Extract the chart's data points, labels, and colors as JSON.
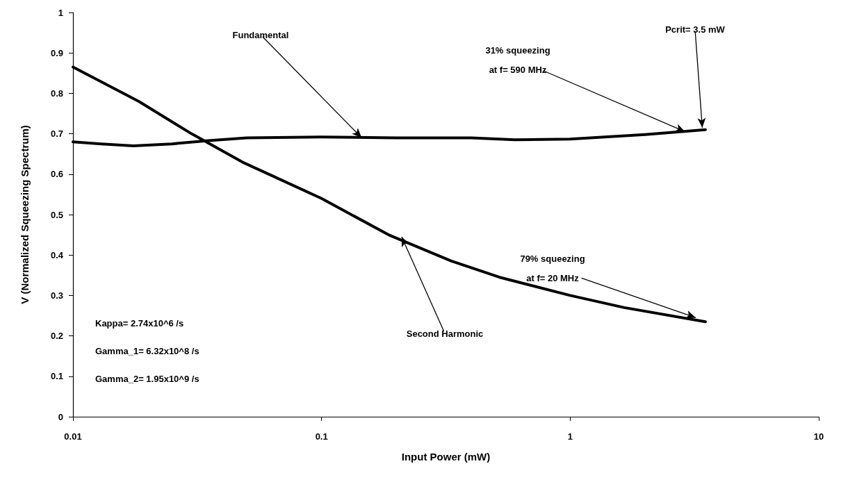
{
  "chart_data": {
    "type": "line",
    "xlabel": "Input Power (mW)",
    "ylabel": "V (Normalized Squeezing Spectrum)",
    "log": "x",
    "xlim": [
      0.01,
      10
    ],
    "xticks": [
      0.01,
      0.1,
      1,
      10
    ],
    "ylim": [
      0,
      1
    ],
    "yticks": [
      0,
      0.1,
      0.2,
      0.3,
      0.4,
      0.5,
      0.6,
      0.7,
      0.8,
      0.9,
      1
    ],
    "grid": false,
    "marker": "none",
    "line_style": "solid",
    "series": [
      {
        "color": "#000000",
        "x": [
          0.01,
          0.013,
          0.0175,
          0.025,
          0.035,
          0.05,
          0.1,
          0.2,
          0.4,
          0.6,
          1,
          2,
          3.5
        ],
        "values": [
          0.68,
          0.675,
          0.67,
          0.675,
          0.683,
          0.69,
          0.692,
          0.69,
          0.69,
          0.685,
          0.687,
          0.698,
          0.71
        ]
      },
      {
        "color": "#000000",
        "x": [
          0.01,
          0.0184,
          0.03,
          0.048,
          0.0665,
          0.1,
          0.186,
          0.333,
          0.52,
          1,
          1.65,
          3.5
        ],
        "values": [
          0.865,
          0.78,
          0.7,
          0.63,
          0.59,
          0.54,
          0.45,
          0.385,
          0.345,
          0.3,
          0.27,
          0.235
        ]
      }
    ],
    "annotations": [
      {
        "text": "Fundamental",
        "x": 0.145,
        "y": 0.69
      },
      {
        "text": "31% squeezing\nat f= 590 MHz",
        "x": 2.9,
        "y": 0.705
      },
      {
        "text": "Pcrit= 3.5 mW",
        "x": 3.4,
        "y": 0.715
      },
      {
        "text": "79% squeezing\nat f= 20 MHz",
        "x": 3.2,
        "y": 0.245
      },
      {
        "text": "Second Harmonic",
        "x": 0.21,
        "y": 0.445
      },
      "Kappa= 2.74x10^6 /s",
      "Gamma_1= 6.32x10^8 /s",
      "Gamma_2= 1.95x10^9 /s"
    ]
  }
}
